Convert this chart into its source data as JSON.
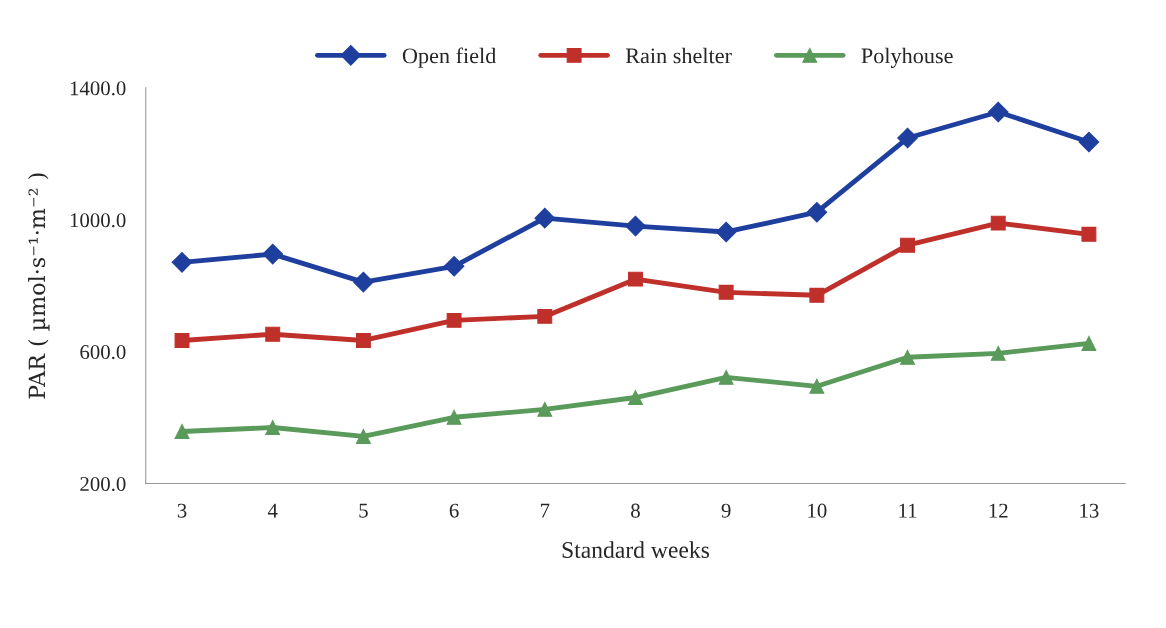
{
  "chart_data": {
    "type": "line",
    "xlabel": "Standard weeks",
    "ylabel": "PAR ( µmol·s⁻¹·m⁻² )",
    "categories": [
      "3",
      "4",
      "5",
      "6",
      "7",
      "8",
      "9",
      "10",
      "11",
      "12",
      "13"
    ],
    "series": [
      {
        "name": "Open field",
        "color": "#1f3f9f",
        "marker": "diamond",
        "values": [
          871,
          896,
          811,
          859,
          1005,
          981,
          963,
          1023,
          1248,
          1327,
          1236
        ]
      },
      {
        "name": "Rain shelter",
        "color": "#c0302b",
        "marker": "square",
        "values": [
          634,
          653,
          634,
          695,
          707,
          820,
          780,
          771,
          923,
          990,
          956
        ]
      },
      {
        "name": "Polyhouse",
        "color": "#5a9a5a",
        "marker": "triangle",
        "values": [
          358,
          370,
          343,
          401,
          425,
          461,
          522,
          495,
          583,
          595,
          625
        ]
      }
    ],
    "ylim": [
      200,
      1400
    ],
    "yticks": [
      {
        "value": 200,
        "label": "200.0"
      },
      {
        "value": 600,
        "label": "600.0"
      },
      {
        "value": 1000,
        "label": "1000.0"
      },
      {
        "value": 1400,
        "label": "1400.0"
      }
    ],
    "grid": false,
    "legend": "top",
    "line_style": "solid"
  }
}
